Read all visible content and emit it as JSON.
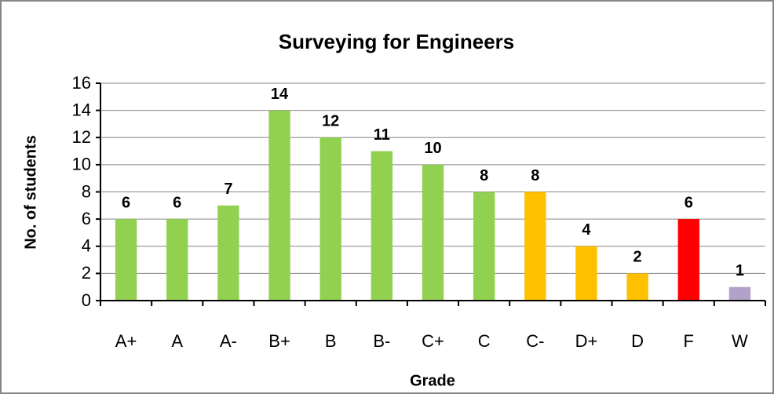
{
  "chart_data": {
    "type": "bar",
    "title": "Surveying for Engineers",
    "x_label": "Grade",
    "y_label": "No. of students",
    "categories": [
      "A+",
      "A",
      "A-",
      "B+",
      "B",
      "B-",
      "C+",
      "C",
      "C-",
      "D+",
      "D",
      "F",
      "W"
    ],
    "values": [
      6,
      6,
      7,
      14,
      12,
      11,
      10,
      8,
      8,
      4,
      2,
      6,
      1
    ],
    "colors": [
      "#92d050",
      "#92d050",
      "#92d050",
      "#92d050",
      "#92d050",
      "#92d050",
      "#92d050",
      "#92d050",
      "#ffc000",
      "#ffc000",
      "#ffc000",
      "#ff0000",
      "#b3a2c7"
    ],
    "ylim": [
      0,
      16
    ],
    "yticks": [
      0,
      2,
      4,
      6,
      8,
      10,
      12,
      14,
      16
    ],
    "grid": true
  }
}
